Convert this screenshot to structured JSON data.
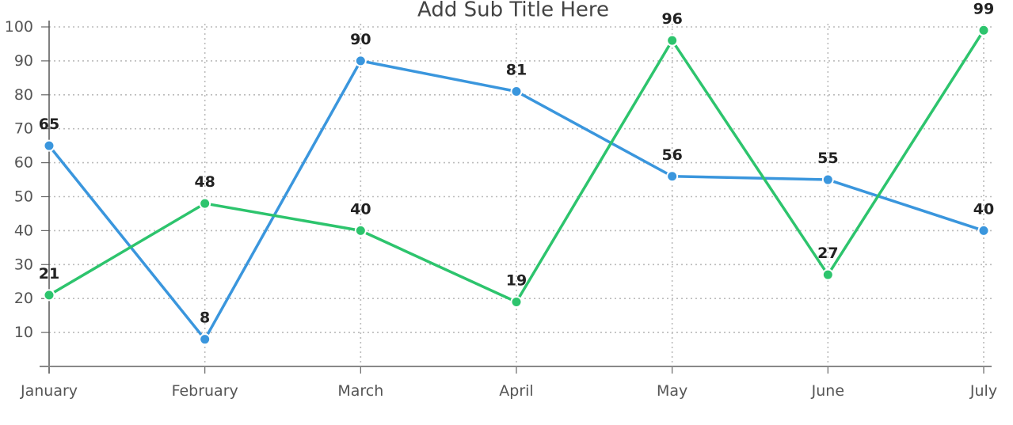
{
  "chart_data": {
    "type": "line",
    "title": "Add Sub Title Here",
    "categories": [
      "January",
      "February",
      "March",
      "April",
      "May",
      "June",
      "July"
    ],
    "series": [
      {
        "values": [
          65,
          8,
          90,
          81,
          56,
          55,
          40
        ],
        "color": "#3a96dd"
      },
      {
        "values": [
          21,
          48,
          40,
          19,
          96,
          27,
          99
        ],
        "color": "#2dc46d"
      }
    ],
    "y_ticks": [
      10,
      20,
      30,
      40,
      50,
      60,
      70,
      80,
      90,
      100
    ],
    "ylim": [
      0,
      100
    ],
    "grid": "dotted",
    "legend": "none",
    "data_labels": true
  }
}
